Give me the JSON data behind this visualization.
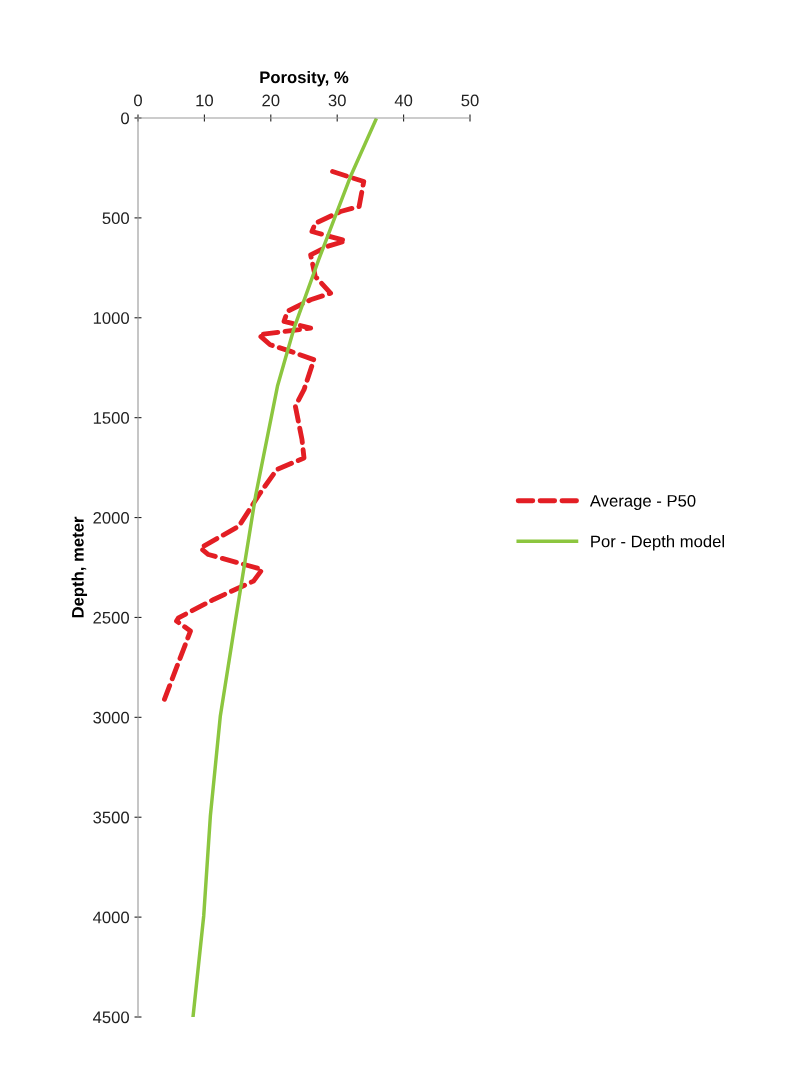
{
  "chart_data": {
    "type": "line",
    "xlabel": "Porosity, %",
    "ylabel": "Depth, meter",
    "orientation": "horizontal",
    "xlim": [
      0,
      50
    ],
    "xticks": [
      0,
      10,
      20,
      30,
      40,
      50
    ],
    "ylim": [
      4500,
      0
    ],
    "yticks": [
      0,
      500,
      1000,
      1500,
      2000,
      2500,
      3000,
      3500,
      4000,
      4500
    ],
    "grid": false,
    "legend": "right",
    "series": [
      {
        "name": "Average - P50",
        "color": "#e31e24",
        "line_style": "dashed",
        "x": [
          268,
          318,
          443,
          468,
          527,
          568,
          615,
          643,
          685,
          793,
          877,
          910,
          968,
          1018,
          1052,
          1085,
          1135,
          1168,
          1210,
          1360,
          1443,
          1610,
          1702,
          1760,
          1877,
          2043,
          2152,
          2185,
          2260,
          2318,
          2410,
          2502,
          2518,
          2568,
          2943
        ],
        "values": [
          29.3,
          34.0,
          33.3,
          30.5,
          26.7,
          26.2,
          31.3,
          28.5,
          26.0,
          26.7,
          29.0,
          26.0,
          22.5,
          22.0,
          26.0,
          18.2,
          19.9,
          23.0,
          26.5,
          25.0,
          23.7,
          24.7,
          25.0,
          20.9,
          18.4,
          15.2,
          9.4,
          10.6,
          18.7,
          17.4,
          11.4,
          6.1,
          5.8,
          7.9,
          3.6
        ]
      },
      {
        "name": "Por - Depth model",
        "color": "#8cc63f",
        "line_style": "solid",
        "x": [
          10,
          293,
          710,
          1052,
          1343,
          1893,
          2510,
          2993,
          3493,
          3993,
          4495
        ],
        "values": [
          35.8,
          32.0,
          27.2,
          23.5,
          21.0,
          17.7,
          14.7,
          12.4,
          10.9,
          9.9,
          8.3
        ]
      }
    ]
  }
}
